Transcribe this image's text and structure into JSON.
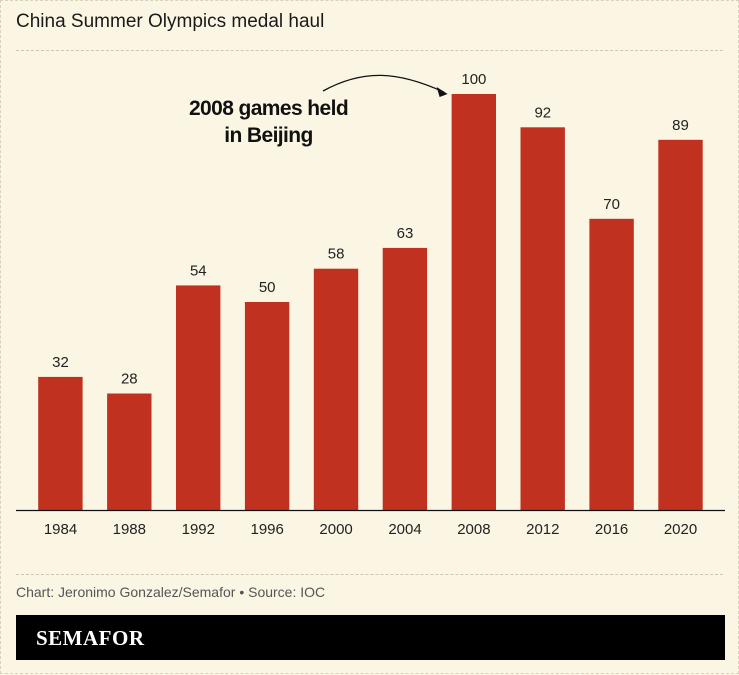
{
  "title": "China Summer Olympics medal haul",
  "footer": {
    "credit": "Chart: Jeronimo Gonzalez/Semafor • Source: IOC",
    "brand": "SEMAFOR"
  },
  "annotation": {
    "line1": "2008 games held",
    "line2": "in Beijing",
    "target": "2008"
  },
  "colors": {
    "bar": "#c0321f",
    "background": "#fbf6e4",
    "text": "#1a1a1a"
  },
  "chart_data": {
    "type": "bar",
    "title": "China Summer Olympics medal haul",
    "xlabel": "",
    "ylabel": "",
    "categories": [
      "1984",
      "1988",
      "1992",
      "1996",
      "2000",
      "2004",
      "2008",
      "2012",
      "2016",
      "2020"
    ],
    "values": [
      32,
      28,
      54,
      50,
      58,
      63,
      100,
      92,
      70,
      89
    ],
    "ylim": [
      0,
      100
    ],
    "grid": false,
    "data_labels": true
  }
}
